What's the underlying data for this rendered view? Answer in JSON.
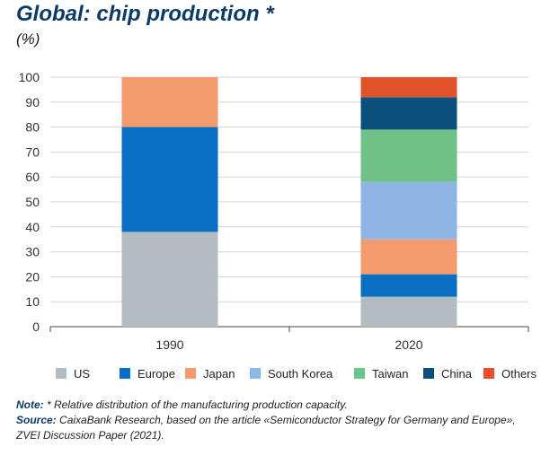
{
  "header": {
    "title": "Global: chip production *",
    "subtitle": "(%)"
  },
  "chart_data": {
    "type": "bar",
    "stacked": true,
    "categories": [
      "1990",
      "2020"
    ],
    "ylim": [
      0,
      100
    ],
    "yticks": [
      0,
      10,
      20,
      30,
      40,
      50,
      60,
      70,
      80,
      90,
      100
    ],
    "series": [
      {
        "name": "US",
        "color": "#b3bcc1",
        "values": [
          38,
          12
        ]
      },
      {
        "name": "Europe",
        "color": "#0a6fc0",
        "values": [
          42,
          9
        ]
      },
      {
        "name": "Japan",
        "color": "#f39a6e",
        "values": [
          20,
          14
        ]
      },
      {
        "name": "South Korea",
        "color": "#8eb5e3",
        "values": [
          0,
          23
        ]
      },
      {
        "name": "Taiwan",
        "color": "#6fc188",
        "values": [
          0,
          21
        ]
      },
      {
        "name": "China",
        "color": "#0b4f7c",
        "values": [
          0,
          13
        ]
      },
      {
        "name": "Others",
        "color": "#e0532a",
        "values": [
          0,
          8
        ]
      }
    ],
    "title": "Global: chip production *",
    "xlabel": "",
    "ylabel": "(%)",
    "legend_position": "bottom"
  },
  "footer": {
    "note_label": "Note:",
    "note_text": " * Relative distribution of the manufacturing production capacity.",
    "source_label": "Source:",
    "source_text": " CaixaBank Research, based on the article «Semiconductor Strategy for Germany and Europe», ZVEI Discussion Paper (2021)."
  }
}
